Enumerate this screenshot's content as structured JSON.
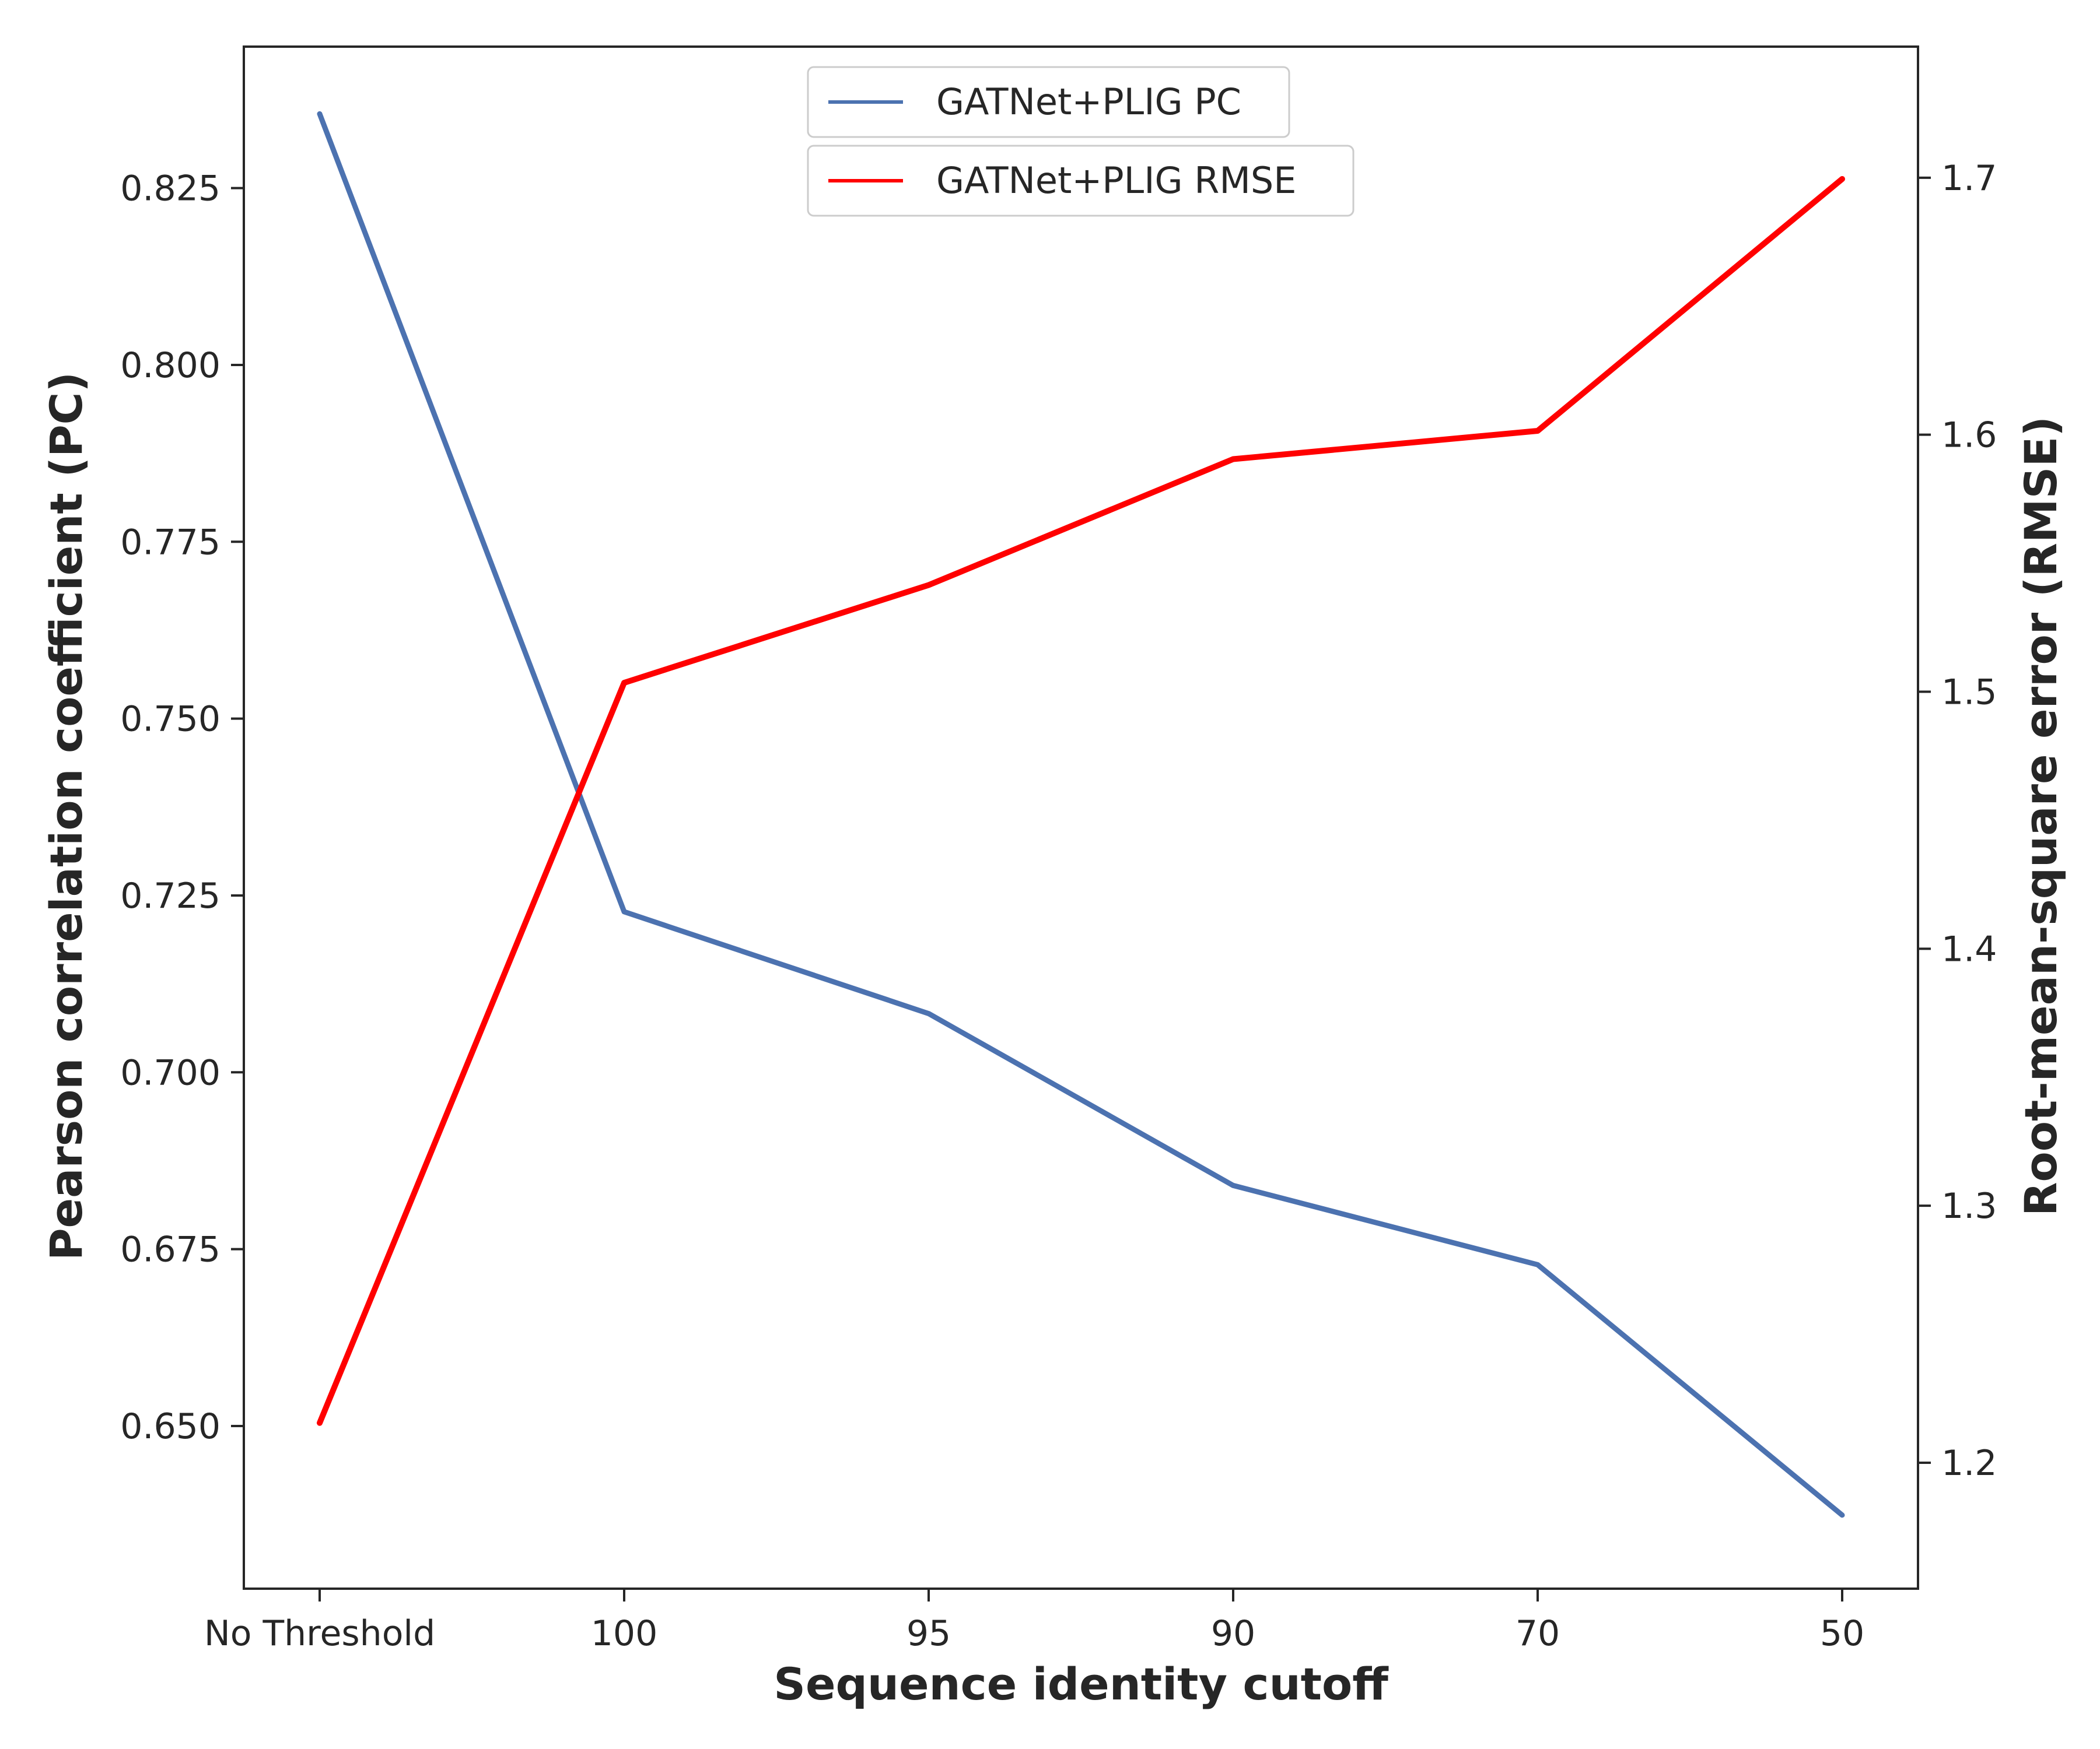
{
  "chart_data": {
    "type": "line",
    "categories": [
      "No Threshold",
      "100",
      "95",
      "90",
      "70",
      "50"
    ],
    "xlabel": "Sequence identity cutoff",
    "ylabel_left": "Pearson correlation coefficient (PC)",
    "ylabel_right": "Root-mean-square error (RMSE)",
    "ylim_left": [
      0.627,
      0.845
    ],
    "ylim_right": [
      1.151,
      1.751
    ],
    "yticks_left": [
      0.65,
      0.675,
      0.7,
      0.725,
      0.75,
      0.775,
      0.8,
      0.825
    ],
    "yticks_left_labels": [
      "0.650",
      "0.675",
      "0.700",
      "0.725",
      "0.750",
      "0.775",
      "0.800",
      "0.825"
    ],
    "yticks_right": [
      1.2,
      1.3,
      1.4,
      1.5,
      1.6,
      1.7
    ],
    "yticks_right_labels": [
      "1.2",
      "1.3",
      "1.4",
      "1.5",
      "1.6",
      "1.7"
    ],
    "grid": false,
    "legend_position": "top-center",
    "series": [
      {
        "name": "GATNet+PLIG PC",
        "axis": "left",
        "color": "#4c72b0",
        "values": [
          0.8355,
          0.7227,
          0.7083,
          0.684,
          0.6728,
          0.6374
        ]
      },
      {
        "name": "GATNet+PLIG RMSE",
        "axis": "right",
        "color": "#ff0000",
        "values": [
          1.2155,
          1.5035,
          1.5415,
          1.5905,
          1.6015,
          1.6995
        ]
      }
    ]
  }
}
